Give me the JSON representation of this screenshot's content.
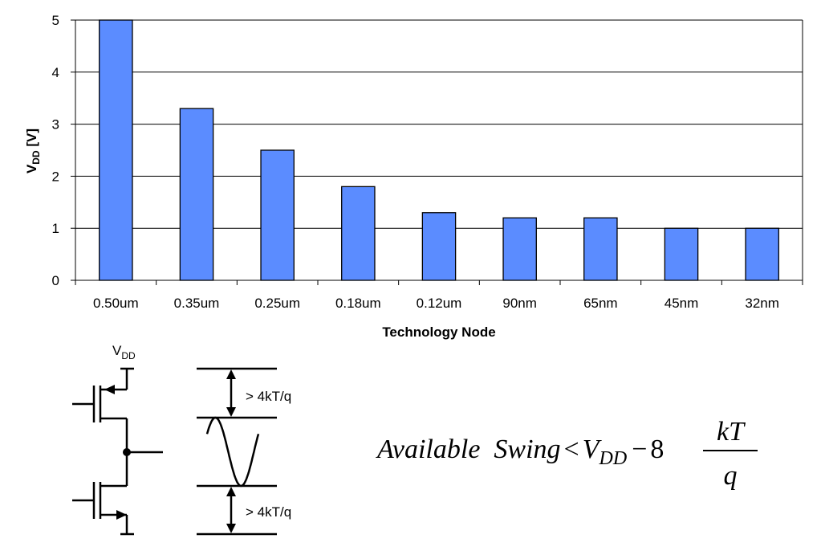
{
  "chart_data": {
    "type": "bar",
    "categories": [
      "0.50um",
      "0.35um",
      "0.25um",
      "0.18um",
      "0.12um",
      "90nm",
      "65nm",
      "45nm",
      "32nm"
    ],
    "values": [
      5,
      3.3,
      2.5,
      1.8,
      1.3,
      1.2,
      1.2,
      1,
      1
    ],
    "xlabel": "Technology Node",
    "ylabel_main": "V",
    "ylabel_sub": "DD",
    "ylabel_unit": " [V]",
    "ylim": [
      0,
      5
    ],
    "yticks": [
      0,
      1,
      2,
      3,
      4,
      5
    ],
    "grid": true,
    "bar_color": "#5b8cff"
  },
  "circuit": {
    "supply_main": "V",
    "supply_sub": "DD",
    "margin_top": "> 4kT/q",
    "margin_bottom": "> 4kT/q"
  },
  "equation": {
    "lhs": "Available  Swing",
    "relation": "<",
    "vdd_main": "V",
    "vdd_sub": "DD",
    "minus": "−",
    "coeff": "8",
    "numerator": "kT",
    "denominator": "q"
  }
}
